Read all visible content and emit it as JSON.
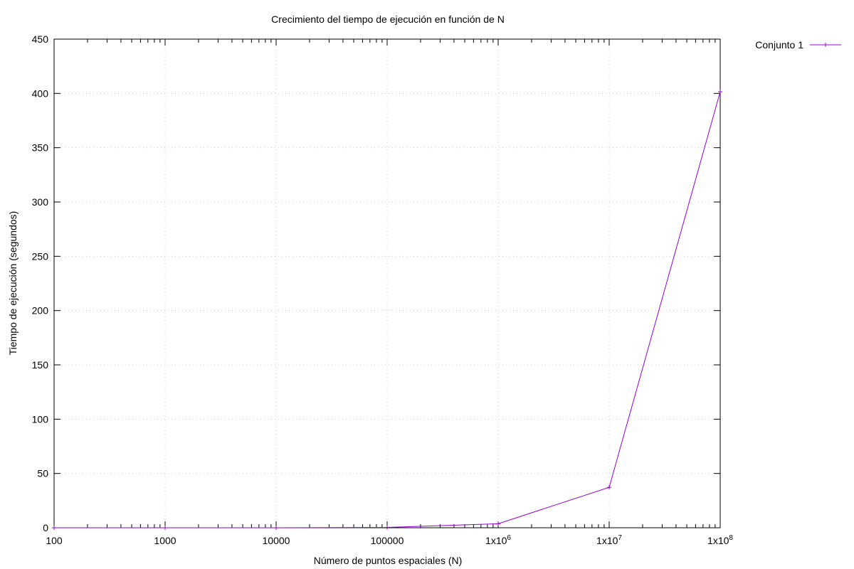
{
  "chart_data": {
    "type": "line",
    "title": "Crecimiento del tiempo de ejecución en función de N",
    "xlabel": "Número de puntos espaciales (N)",
    "ylabel": "Tiempo de ejecución (segundos)",
    "xscale": "log",
    "xlim": [
      100,
      100000000
    ],
    "ylim": [
      0,
      450
    ],
    "grid": true,
    "legend_position": "outside top-right",
    "x_ticks": [
      {
        "value": 100,
        "label": "100"
      },
      {
        "value": 1000,
        "label": "1000"
      },
      {
        "value": 10000,
        "label": "10000"
      },
      {
        "value": 100000,
        "label": "100000"
      },
      {
        "value": 1000000,
        "label": "1x10",
        "exp": "6"
      },
      {
        "value": 10000000,
        "label": "1x10",
        "exp": "7"
      },
      {
        "value": 100000000,
        "label": "1x10",
        "exp": "8"
      }
    ],
    "y_ticks": [
      {
        "value": 0,
        "label": "0"
      },
      {
        "value": 50,
        "label": "50"
      },
      {
        "value": 100,
        "label": "100"
      },
      {
        "value": 150,
        "label": "150"
      },
      {
        "value": 200,
        "label": "200"
      },
      {
        "value": 250,
        "label": "250"
      },
      {
        "value": 300,
        "label": "300"
      },
      {
        "value": 350,
        "label": "350"
      },
      {
        "value": 400,
        "label": "400"
      },
      {
        "value": 450,
        "label": "450"
      }
    ],
    "series": [
      {
        "name": "Conjunto 1",
        "color": "#9400d3",
        "x": [
          100,
          1000,
          10000,
          100000,
          1000000,
          10000000,
          100000000
        ],
        "values": [
          0.001,
          0.004,
          0.03,
          0.35,
          3.7,
          37.2,
          401.5
        ]
      }
    ]
  }
}
